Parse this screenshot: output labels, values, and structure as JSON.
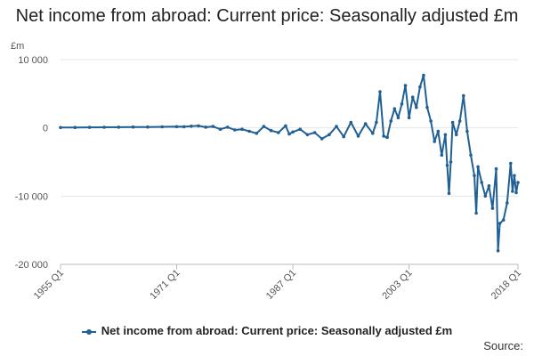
{
  "chart_data": {
    "type": "line",
    "title": "Net income from abroad: Current price: Seasonally adjusted £m",
    "ylabel": "£m",
    "ylim": [
      -20000,
      10000
    ],
    "yticks": [
      10000,
      0,
      -10000,
      -20000
    ],
    "ytick_labels": [
      "10 000",
      "0",
      "-10 000",
      "-20 000"
    ],
    "xlim": [
      "1955 Q1",
      "2018 Q1"
    ],
    "xticks": [
      "1955 Q1",
      "1971 Q1",
      "1987 Q1",
      "2003 Q1",
      "2018 Q1"
    ],
    "grid": true,
    "legend_position": "bottom",
    "series": [
      {
        "name": "Net income from abroad: Current price: Seasonally adjusted £m",
        "color": "#206095",
        "points": [
          [
            "1955 Q1",
            50
          ],
          [
            "1957 Q1",
            60
          ],
          [
            "1959 Q1",
            80
          ],
          [
            "1961 Q1",
            90
          ],
          [
            "1963 Q1",
            100
          ],
          [
            "1965 Q1",
            120
          ],
          [
            "1967 Q1",
            130
          ],
          [
            "1969 Q1",
            150
          ],
          [
            "1971 Q1",
            180
          ],
          [
            "1972 Q1",
            160
          ],
          [
            "1973 Q1",
            250
          ],
          [
            "1974 Q1",
            300
          ],
          [
            "1975 Q1",
            100
          ],
          [
            "1976 Q1",
            200
          ],
          [
            "1977 Q1",
            -200
          ],
          [
            "1978 Q1",
            100
          ],
          [
            "1979 Q1",
            -300
          ],
          [
            "1980 Q1",
            -200
          ],
          [
            "1981 Q1",
            -500
          ],
          [
            "1982 Q1",
            -800
          ],
          [
            "1983 Q1",
            200
          ],
          [
            "1984 Q1",
            -400
          ],
          [
            "1985 Q1",
            -700
          ],
          [
            "1986 Q1",
            300
          ],
          [
            "1986 Q3",
            -900
          ],
          [
            "1987 Q1",
            -600
          ],
          [
            "1988 Q1",
            -200
          ],
          [
            "1989 Q1",
            -1000
          ],
          [
            "1990 Q1",
            -700
          ],
          [
            "1991 Q1",
            -1600
          ],
          [
            "1992 Q1",
            -1000
          ],
          [
            "1993 Q1",
            200
          ],
          [
            "1994 Q1",
            -1300
          ],
          [
            "1995 Q1",
            800
          ],
          [
            "1996 Q1",
            -1200
          ],
          [
            "1997 Q1",
            600
          ],
          [
            "1998 Q1",
            -800
          ],
          [
            "1998 Q3",
            800
          ],
          [
            "1999 Q1",
            5300
          ],
          [
            "1999 Q3",
            -1200
          ],
          [
            "2000 Q1",
            -1400
          ],
          [
            "2000 Q3",
            1000
          ],
          [
            "2001 Q1",
            2800
          ],
          [
            "2001 Q3",
            1500
          ],
          [
            "2002 Q1",
            3500
          ],
          [
            "2002 Q3",
            6200
          ],
          [
            "2003 Q1",
            1500
          ],
          [
            "2003 Q3",
            4500
          ],
          [
            "2004 Q1",
            3000
          ],
          [
            "2004 Q3",
            6000
          ],
          [
            "2005 Q1",
            7700
          ],
          [
            "2005 Q3",
            3000
          ],
          [
            "2006 Q1",
            1000
          ],
          [
            "2006 Q3",
            -2000
          ],
          [
            "2007 Q1",
            -500
          ],
          [
            "2007 Q3",
            -4000
          ],
          [
            "2008 Q1",
            -1000
          ],
          [
            "2008 Q2",
            -5500
          ],
          [
            "2008 Q3",
            -9600
          ],
          [
            "2008 Q4",
            -5000
          ],
          [
            "2009 Q1",
            800
          ],
          [
            "2009 Q3",
            -1000
          ],
          [
            "2010 Q1",
            1000
          ],
          [
            "2010 Q3",
            4700
          ],
          [
            "2011 Q1",
            -500
          ],
          [
            "2011 Q3",
            -4000
          ],
          [
            "2012 Q1",
            -7000
          ],
          [
            "2012 Q2",
            -12500
          ],
          [
            "2012 Q3",
            -5700
          ],
          [
            "2013 Q1",
            -8000
          ],
          [
            "2013 Q3",
            -10000
          ],
          [
            "2014 Q1",
            -8500
          ],
          [
            "2014 Q3",
            -11800
          ],
          [
            "2015 Q1",
            -6000
          ],
          [
            "2015 Q2",
            -18000
          ],
          [
            "2015 Q3",
            -14000
          ],
          [
            "2016 Q1",
            -13500
          ],
          [
            "2016 Q3",
            -11000
          ],
          [
            "2017 Q1",
            -5200
          ],
          [
            "2017 Q2",
            -9300
          ],
          [
            "2017 Q3",
            -7000
          ],
          [
            "2017 Q4",
            -9500
          ],
          [
            "2018 Q1",
            -8000
          ]
        ]
      }
    ],
    "source_label": "Source:"
  }
}
